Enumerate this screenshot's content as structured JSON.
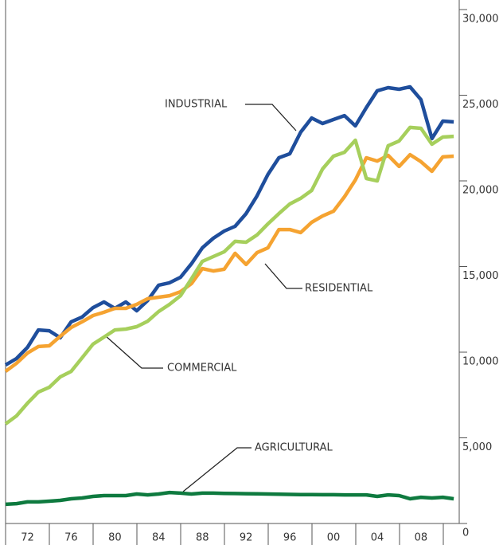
{
  "chart_data": {
    "type": "line",
    "x": [
      1970,
      1971,
      1972,
      1973,
      1974,
      1975,
      1976,
      1977,
      1978,
      1979,
      1980,
      1981,
      1982,
      1983,
      1984,
      1985,
      1986,
      1987,
      1988,
      1989,
      1990,
      1991,
      1992,
      1993,
      1994,
      1995,
      1996,
      1997,
      1998,
      1999,
      2000,
      2001,
      2002,
      2003,
      2004,
      2005,
      2006,
      2007,
      2008,
      2009,
      2010,
      2011
    ],
    "series": [
      {
        "name": "INDUSTRIAL",
        "color": "#1f4e9c",
        "values": [
          9250,
          9630,
          10280,
          11300,
          11250,
          10840,
          11770,
          12050,
          12600,
          12930,
          12560,
          12930,
          12420,
          13020,
          13910,
          14050,
          14370,
          15160,
          16090,
          16650,
          17070,
          17350,
          18090,
          19120,
          20370,
          21350,
          21580,
          22840,
          23670,
          23350,
          23580,
          23810,
          23210,
          24280,
          25260,
          25440,
          25350,
          25490,
          24740,
          22470,
          23490,
          23440
        ]
      },
      {
        "name": "RESIDENTIAL",
        "color": "#f5a331",
        "values": [
          8880,
          9350,
          9950,
          10330,
          10370,
          10930,
          11440,
          11770,
          12140,
          12330,
          12560,
          12560,
          12790,
          13120,
          13210,
          13300,
          13530,
          14000,
          14880,
          14740,
          14840,
          15770,
          15120,
          15810,
          16090,
          17160,
          17160,
          16980,
          17580,
          17950,
          18230,
          19070,
          20050,
          21350,
          21160,
          21490,
          20840,
          21530,
          21120,
          20560,
          21400,
          21440
        ]
      },
      {
        "name": "COMMERCIAL",
        "color": "#a6cf5c",
        "values": [
          5810,
          6280,
          7020,
          7670,
          7950,
          8560,
          8880,
          9670,
          10470,
          10880,
          11300,
          11350,
          11490,
          11810,
          12370,
          12790,
          13300,
          14280,
          15300,
          15580,
          15860,
          16470,
          16420,
          16840,
          17490,
          18090,
          18650,
          18980,
          19440,
          20700,
          21440,
          21670,
          22370,
          20140,
          20000,
          22050,
          22330,
          23120,
          23070,
          22140,
          22560,
          22600
        ]
      },
      {
        "name": "AGRICULTURAL",
        "color": "#0e7a3f",
        "values": [
          1120,
          1160,
          1260,
          1260,
          1300,
          1350,
          1440,
          1490,
          1580,
          1630,
          1630,
          1630,
          1720,
          1670,
          1720,
          1810,
          1770,
          1720,
          1770,
          1770,
          1760,
          1750,
          1740,
          1730,
          1720,
          1710,
          1700,
          1690,
          1690,
          1680,
          1680,
          1670,
          1670,
          1670,
          1580,
          1670,
          1630,
          1440,
          1530,
          1490,
          1530,
          1440
        ]
      }
    ],
    "xlim": [
      1970,
      2011.5
    ],
    "xticks": [
      {
        "value": 1972,
        "label": "72"
      },
      {
        "value": 1976,
        "label": "76"
      },
      {
        "value": 1980,
        "label": "80"
      },
      {
        "value": 1984,
        "label": "84"
      },
      {
        "value": 1988,
        "label": "88"
      },
      {
        "value": 1992,
        "label": "92"
      },
      {
        "value": 1996,
        "label": "96"
      },
      {
        "value": 2000,
        "label": "00"
      },
      {
        "value": 2004,
        "label": "04"
      },
      {
        "value": 2008,
        "label": "08"
      }
    ],
    "ylim": [
      0,
      30000
    ],
    "yticks": [
      0,
      {
        "value": 5000,
        "label": "5,000"
      },
      {
        "value": 10000,
        "label": "10,000"
      },
      {
        "value": 15000,
        "label": "15,000"
      },
      {
        "value": 20000,
        "label": "20,000"
      },
      {
        "value": 25000,
        "label": "25,000"
      },
      {
        "value": 30000,
        "label": "30,000"
      }
    ]
  }
}
